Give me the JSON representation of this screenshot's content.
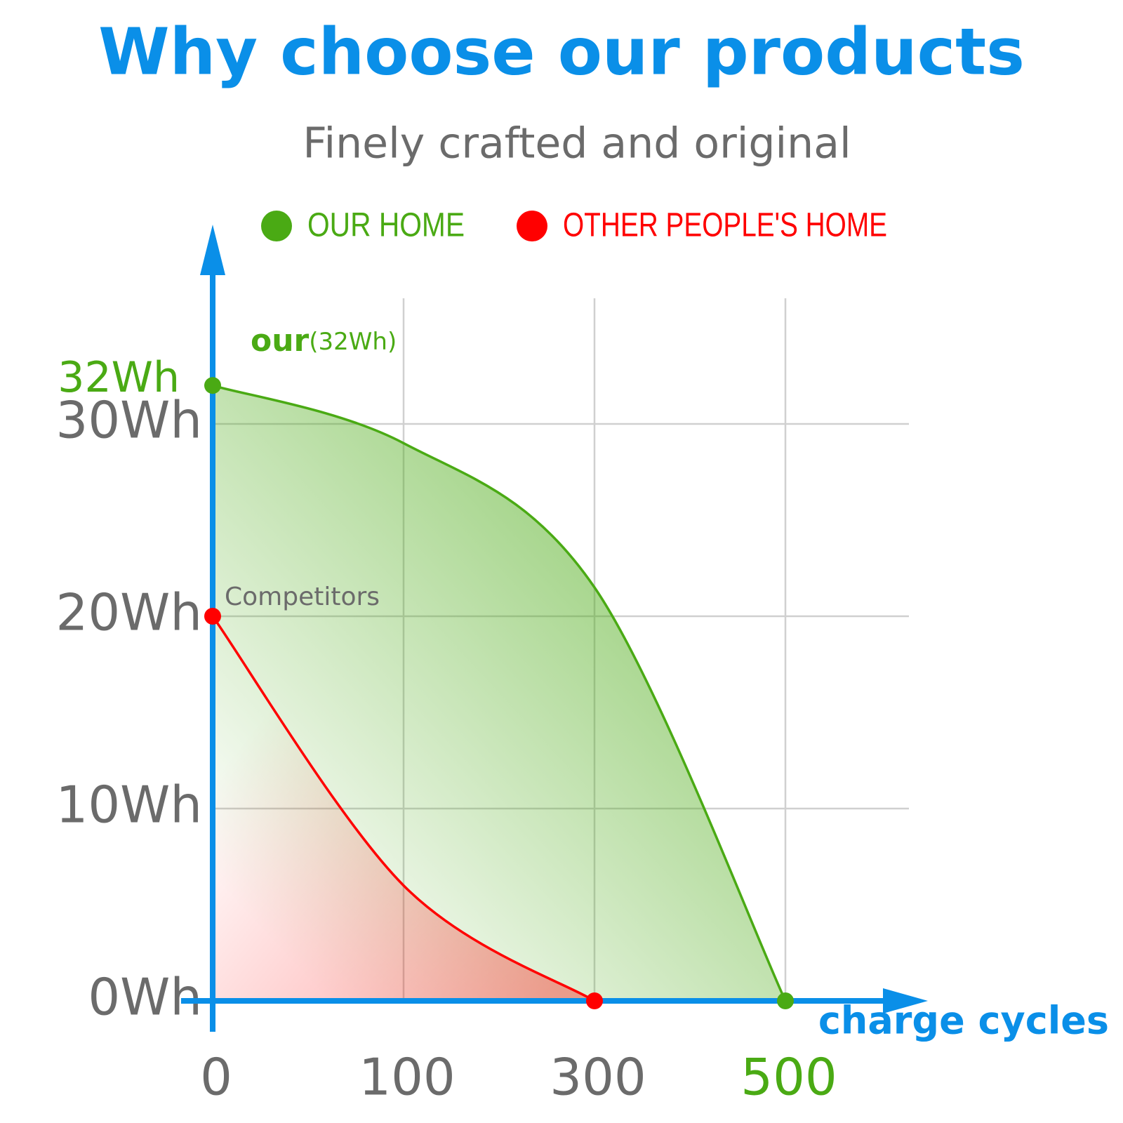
{
  "chart_data": {
    "type": "area",
    "title": "Why choose our products",
    "subtitle": "Finely crafted and original",
    "x_label": "charge cycles",
    "categories": [
      "0",
      "100",
      "300",
      "500"
    ],
    "series": [
      {
        "name": "OUR HOME",
        "color": "#4aaa14",
        "values": [
          32,
          29,
          21.5,
          0
        ]
      },
      {
        "name": "OTHER PEOPLE'S HOME",
        "color": "#ff0000",
        "values": [
          20,
          6,
          0,
          null
        ]
      }
    ],
    "annotations": [
      "our",
      "(32Wh)",
      "Competitors"
    ],
    "ylim": [
      0,
      40
    ],
    "yticks": [
      {
        "value": 0,
        "label": "0Wh"
      },
      {
        "value": 10,
        "label": "10Wh"
      },
      {
        "value": 20,
        "label": "20Wh"
      },
      {
        "value": 30,
        "label": "30Wh"
      },
      {
        "value": 32,
        "label": "32Wh"
      }
    ],
    "grid": true
  }
}
